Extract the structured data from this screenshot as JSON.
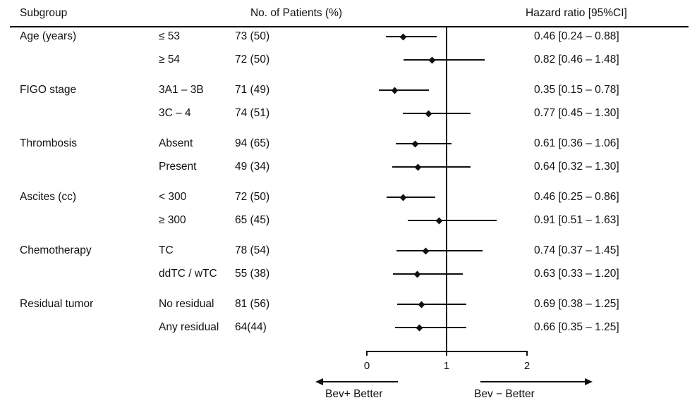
{
  "header": {
    "subgroup": "Subgroup",
    "patients": "No. of Patients (%)",
    "hazard": "Hazard ratio [95%CI]"
  },
  "axis": {
    "min": 0,
    "max": 2,
    "reference": 1,
    "ticks": [
      "0",
      "1",
      "2"
    ],
    "left_arrow_label": "Bev+  Better",
    "right_arrow_label": "Bev − Better"
  },
  "colors": {
    "ink": "#111111",
    "background": "#ffffff"
  },
  "chart_data": {
    "type": "forest",
    "title": "",
    "xlabel": "Hazard ratio",
    "xlim": [
      0,
      2
    ],
    "reference_line": 1,
    "rows": [
      {
        "group": "Age (years)",
        "label": "≤ 53",
        "n": "73 (50)",
        "hr": 0.46,
        "lo": 0.24,
        "hi": 0.88,
        "text": "0.46 [0.24 – 0.88]"
      },
      {
        "group": "",
        "label": "≥ 54",
        "n": "72 (50)",
        "hr": 0.82,
        "lo": 0.46,
        "hi": 1.48,
        "text": "0.82 [0.46 – 1.48]"
      },
      {
        "group": "FIGO stage",
        "label": "3A1 – 3B",
        "n": "71 (49)",
        "hr": 0.35,
        "lo": 0.15,
        "hi": 0.78,
        "text": "0.35 [0.15 – 0.78]"
      },
      {
        "group": "",
        "label": "3C – 4",
        "n": "74 (51)",
        "hr": 0.77,
        "lo": 0.45,
        "hi": 1.3,
        "text": "0.77 [0.45 – 1.30]"
      },
      {
        "group": "Thrombosis",
        "label": "Absent",
        "n": "94 (65)",
        "hr": 0.61,
        "lo": 0.36,
        "hi": 1.06,
        "text": "0.61 [0.36 – 1.06]"
      },
      {
        "group": "",
        "label": "Present",
        "n": "49 (34)",
        "hr": 0.64,
        "lo": 0.32,
        "hi": 1.3,
        "text": "0.64 [0.32 – 1.30]"
      },
      {
        "group": "Ascites (cc)",
        "label": "< 300",
        "n": "72 (50)",
        "hr": 0.46,
        "lo": 0.25,
        "hi": 0.86,
        "text": "0.46 [0.25 – 0.86]"
      },
      {
        "group": "",
        "label": "≥ 300",
        "n": "65 (45)",
        "hr": 0.91,
        "lo": 0.51,
        "hi": 1.63,
        "text": "0.91 [0.51 – 1.63]"
      },
      {
        "group": "Chemotherapy",
        "label": "TC",
        "n": "78 (54)",
        "hr": 0.74,
        "lo": 0.37,
        "hi": 1.45,
        "text": "0.74 [0.37 – 1.45]"
      },
      {
        "group": "",
        "label": "ddTC / wTC",
        "n": "55 (38)",
        "hr": 0.63,
        "lo": 0.33,
        "hi": 1.2,
        "text": "0.63 [0.33 – 1.20]"
      },
      {
        "group": "Residual tumor",
        "label": "No residual",
        "n": "81 (56)",
        "hr": 0.69,
        "lo": 0.38,
        "hi": 1.25,
        "text": "0.69 [0.38 – 1.25]"
      },
      {
        "group": "",
        "label": "Any residual",
        "n": "64(44)",
        "hr": 0.66,
        "lo": 0.35,
        "hi": 1.25,
        "text": "0.66 [0.35 – 1.25]"
      }
    ]
  }
}
